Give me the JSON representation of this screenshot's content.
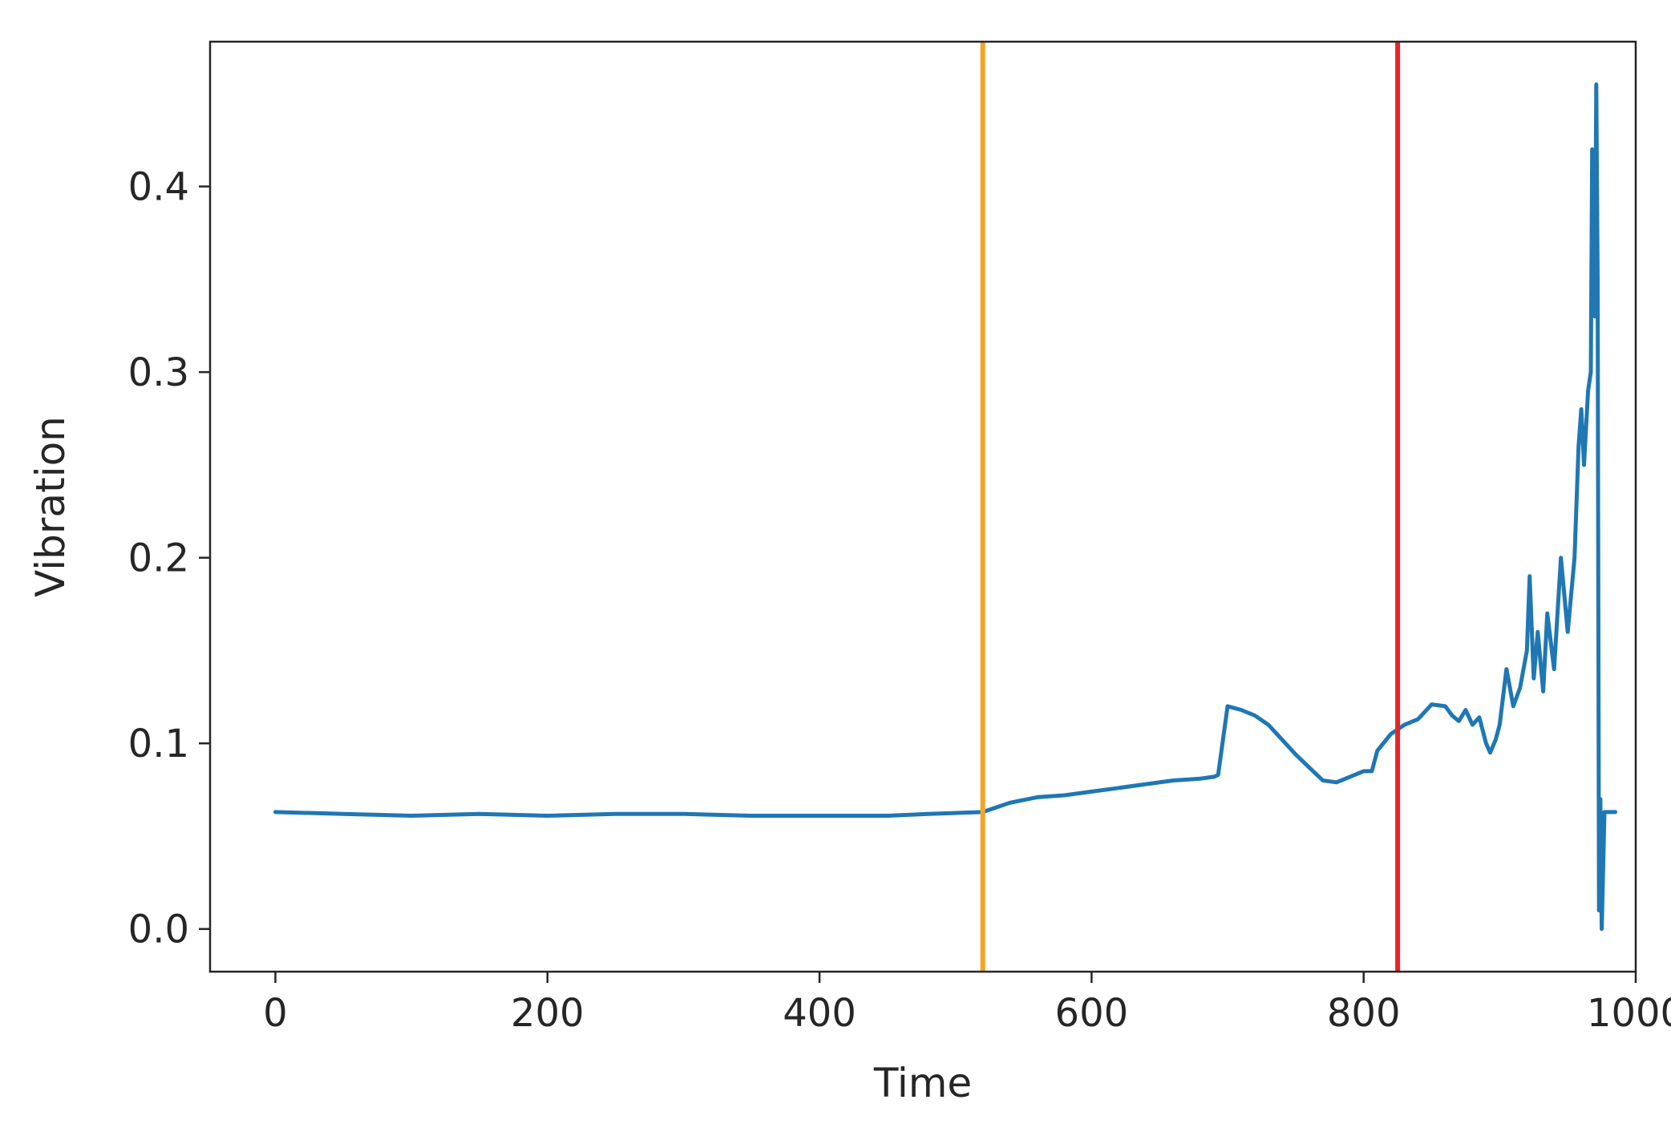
{
  "chart_data": {
    "type": "line",
    "title": "",
    "xlabel": "Time",
    "ylabel": "Vibration",
    "xlim": [
      -48,
      1000
    ],
    "ylim": [
      -0.023,
      0.478
    ],
    "xticks": [
      0,
      200,
      400,
      600,
      800,
      1000
    ],
    "yticks": [
      0.0,
      0.1,
      0.2,
      0.3,
      0.4
    ],
    "xtick_labels": [
      "0",
      "200",
      "400",
      "600",
      "800",
      "1000"
    ],
    "ytick_labels": [
      "0.0",
      "0.1",
      "0.2",
      "0.3",
      "0.4"
    ],
    "grid": false,
    "series": [
      {
        "color": "#1f77b4",
        "x": [
          0,
          50,
          100,
          150,
          200,
          250,
          300,
          350,
          400,
          450,
          480,
          520,
          540,
          560,
          580,
          600,
          620,
          640,
          660,
          680,
          690,
          693,
          700,
          710,
          720,
          730,
          740,
          750,
          760,
          770,
          780,
          790,
          800,
          806,
          810,
          820,
          830,
          840,
          850,
          860,
          865,
          870,
          875,
          880,
          885,
          890,
          893,
          897,
          900,
          905,
          910,
          915,
          920,
          922,
          925,
          928,
          932,
          935,
          940,
          945,
          950,
          955,
          958,
          960,
          962,
          965,
          967,
          968,
          970,
          971,
          972,
          973,
          974,
          975,
          977,
          980,
          985
        ],
        "y": [
          0.063,
          0.062,
          0.061,
          0.062,
          0.061,
          0.062,
          0.062,
          0.061,
          0.061,
          0.061,
          0.062,
          0.063,
          0.068,
          0.071,
          0.072,
          0.074,
          0.076,
          0.078,
          0.08,
          0.081,
          0.082,
          0.083,
          0.12,
          0.118,
          0.115,
          0.11,
          0.102,
          0.094,
          0.087,
          0.08,
          0.079,
          0.082,
          0.085,
          0.085,
          0.096,
          0.105,
          0.11,
          0.113,
          0.121,
          0.12,
          0.115,
          0.112,
          0.118,
          0.11,
          0.114,
          0.1,
          0.095,
          0.102,
          0.11,
          0.14,
          0.12,
          0.13,
          0.15,
          0.19,
          0.135,
          0.16,
          0.128,
          0.17,
          0.14,
          0.2,
          0.16,
          0.2,
          0.26,
          0.28,
          0.25,
          0.29,
          0.3,
          0.42,
          0.33,
          0.455,
          0.35,
          0.01,
          0.07,
          0.0,
          0.063,
          0.063,
          0.063
        ]
      }
    ],
    "vertical_lines": [
      {
        "x": 520,
        "color": "#f5a623"
      },
      {
        "x": 825,
        "color": "#e8232a"
      }
    ]
  }
}
